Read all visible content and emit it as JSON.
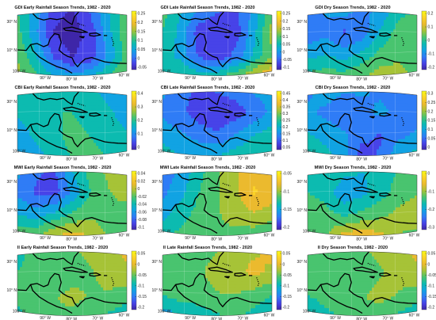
{
  "panels": [
    {
      "title": "GDI Early Rainfall Season Trends, 1982 - 2020",
      "colorbar": [
        "0.25",
        "0.2",
        "0.15",
        "0.1",
        "0.05",
        "0",
        "-0.05"
      ],
      "field": [
        [
          0.5,
          0.35,
          0.1,
          0.05,
          0.2,
          0.4,
          0.55
        ],
        [
          0.55,
          0.3,
          0.05,
          0.0,
          0.1,
          0.35,
          0.6
        ],
        [
          0.6,
          0.4,
          0.15,
          0.05,
          0.1,
          0.3,
          0.55
        ],
        [
          0.65,
          0.55,
          0.45,
          0.4,
          0.45,
          0.55,
          0.65
        ]
      ]
    },
    {
      "title": "GDI Late Rainfall Season Trends, 1982 - 2020",
      "colorbar": [
        "0.25",
        "0.2",
        "0.15",
        "0.1",
        "0.05",
        "0",
        "-0.05",
        "-0.1"
      ],
      "field": [
        [
          0.55,
          0.4,
          0.3,
          0.2,
          0.15,
          0.3,
          0.6
        ],
        [
          0.5,
          0.35,
          0.1,
          0.05,
          0.1,
          0.35,
          0.65
        ],
        [
          0.45,
          0.35,
          0.15,
          0.1,
          0.2,
          0.4,
          0.6
        ],
        [
          0.5,
          0.55,
          0.55,
          0.6,
          0.7,
          0.8,
          0.85
        ]
      ]
    },
    {
      "title": "GDI Dry Season Trends, 1982 - 2020",
      "colorbar": [
        "0.2",
        "0.1",
        "0",
        "-0.1",
        "-0.2"
      ],
      "field": [
        [
          0.15,
          0.3,
          0.35,
          0.25,
          0.3,
          0.45,
          0.5
        ],
        [
          0.2,
          0.25,
          0.15,
          0.2,
          0.4,
          0.55,
          0.6
        ],
        [
          0.35,
          0.4,
          0.35,
          0.45,
          0.55,
          0.6,
          0.55
        ],
        [
          0.55,
          0.6,
          0.6,
          0.65,
          0.7,
          0.65,
          0.6
        ]
      ]
    },
    {
      "title": "CBI Early Rainfall Season Trends, 1982 - 2020",
      "colorbar": [
        "0.4",
        "0.3",
        "0.2",
        "0.1",
        "0"
      ],
      "field": [
        [
          0.45,
          0.5,
          0.5,
          0.45,
          0.4,
          0.35,
          0.3
        ],
        [
          0.4,
          0.45,
          0.5,
          0.5,
          0.45,
          0.4,
          0.35
        ],
        [
          0.35,
          0.4,
          0.45,
          0.55,
          0.5,
          0.45,
          0.4
        ],
        [
          0.3,
          0.35,
          0.4,
          0.5,
          0.55,
          0.5,
          0.45
        ]
      ]
    },
    {
      "title": "CBI Late Rainfall Season Trends, 1982 - 2020",
      "colorbar": [
        "0.45",
        "0.4",
        "0.35",
        "0.3",
        "0.25",
        "0.2",
        "0.15",
        "0.1",
        "0.05"
      ],
      "field": [
        [
          0.3,
          0.2,
          0.15,
          0.2,
          0.25,
          0.3,
          0.35
        ],
        [
          0.25,
          0.2,
          0.1,
          0.05,
          0.1,
          0.2,
          0.3
        ],
        [
          0.35,
          0.3,
          0.25,
          0.2,
          0.3,
          0.4,
          0.45
        ],
        [
          0.45,
          0.4,
          0.4,
          0.45,
          0.5,
          0.5,
          0.5
        ]
      ]
    },
    {
      "title": "CBI Dry Season Trends, 1982 - 2020",
      "colorbar": [
        "0.3",
        "0.25",
        "0.2",
        "0.15",
        "0.1",
        "0.05",
        "0"
      ],
      "field": [
        [
          0.25,
          0.35,
          0.3,
          0.3,
          0.25,
          0.2,
          0.25
        ],
        [
          0.3,
          0.25,
          0.2,
          0.25,
          0.3,
          0.25,
          0.2
        ],
        [
          0.4,
          0.35,
          0.3,
          0.2,
          0.15,
          0.25,
          0.3
        ],
        [
          0.5,
          0.45,
          0.35,
          0.05,
          0.2,
          0.4,
          0.45
        ]
      ]
    },
    {
      "title": "MWI Early Rainfall Season Trends, 1982 - 2020",
      "colorbar": [
        "0.04",
        "0.02",
        "0",
        "-0.02",
        "-0.04",
        "-0.06",
        "-0.08",
        "-0.1"
      ],
      "field": [
        [
          0.3,
          0.2,
          0.15,
          0.4,
          0.55,
          0.65,
          0.7
        ],
        [
          0.25,
          0.15,
          0.1,
          0.3,
          0.5,
          0.6,
          0.7
        ],
        [
          0.4,
          0.35,
          0.45,
          0.55,
          0.6,
          0.55,
          0.5
        ],
        [
          0.6,
          0.65,
          0.8,
          0.85,
          0.75,
          0.6,
          0.55
        ]
      ]
    },
    {
      "title": "MWI Late Rainfall Season Trends, 1982 - 2020",
      "colorbar": [
        "-0.05",
        "-0.1",
        "-0.15",
        "-0.2"
      ],
      "field": [
        [
          0.2,
          0.3,
          0.45,
          0.6,
          0.7,
          0.8,
          0.75
        ],
        [
          0.25,
          0.35,
          0.5,
          0.6,
          0.7,
          0.85,
          0.8
        ],
        [
          0.35,
          0.45,
          0.55,
          0.6,
          0.65,
          0.7,
          0.65
        ],
        [
          0.5,
          0.55,
          0.6,
          0.6,
          0.55,
          0.5,
          0.5
        ]
      ]
    },
    {
      "title": "MWI Dry Season Trends, 1982 - 2020",
      "colorbar": [
        "0",
        "-0.1",
        "-0.2",
        "-0.3"
      ],
      "field": [
        [
          0.45,
          0.5,
          0.45,
          0.4,
          0.45,
          0.5,
          0.55
        ],
        [
          0.5,
          0.45,
          0.3,
          0.35,
          0.45,
          0.55,
          0.6
        ],
        [
          0.6,
          0.55,
          0.5,
          0.55,
          0.6,
          0.65,
          0.7
        ],
        [
          0.55,
          0.6,
          0.85,
          0.9,
          0.8,
          0.6,
          0.55
        ]
      ]
    },
    {
      "title": "II Early Rainfall Season Trends, 1982 - 2020",
      "colorbar": [
        "0.05",
        "0",
        "-0.05",
        "-0.1",
        "-0.15",
        "-0.2"
      ],
      "field": [
        [
          0.45,
          0.55,
          0.6,
          0.6,
          0.65,
          0.7,
          0.75
        ],
        [
          0.5,
          0.55,
          0.5,
          0.55,
          0.6,
          0.65,
          0.7
        ],
        [
          0.55,
          0.6,
          0.6,
          0.65,
          0.6,
          0.6,
          0.55
        ],
        [
          0.45,
          0.55,
          0.6,
          0.55,
          0.5,
          0.45,
          0.4
        ]
      ]
    },
    {
      "title": "II Late Rainfall Season Trends, 1982 - 2020",
      "colorbar": [
        "0.05",
        "0",
        "-0.05",
        "-0.1",
        "-0.15",
        "-0.2"
      ],
      "field": [
        [
          0.55,
          0.6,
          0.55,
          0.6,
          0.65,
          0.7,
          0.75
        ],
        [
          0.5,
          0.55,
          0.6,
          0.65,
          0.7,
          0.75,
          0.7
        ],
        [
          0.5,
          0.55,
          0.55,
          0.6,
          0.6,
          0.55,
          0.5
        ],
        [
          0.3,
          0.35,
          0.4,
          0.45,
          0.5,
          0.45,
          0.4
        ]
      ]
    },
    {
      "title": "II Dry Season Trends, 1982 - 2020",
      "colorbar": [
        "0.05",
        "0",
        "-0.05",
        "-0.1",
        "-0.15",
        "-0.2"
      ],
      "field": [
        [
          0.5,
          0.55,
          0.6,
          0.6,
          0.65,
          0.7,
          0.75
        ],
        [
          0.55,
          0.55,
          0.5,
          0.55,
          0.6,
          0.65,
          0.7
        ],
        [
          0.5,
          0.55,
          0.6,
          0.6,
          0.65,
          0.6,
          0.55
        ],
        [
          0.35,
          0.45,
          0.5,
          0.55,
          0.5,
          0.45,
          0.4
        ]
      ]
    }
  ],
  "lon_ticks": [
    "100° W",
    "90° W",
    "80° W",
    "70° W",
    "60° W"
  ],
  "lat_ticks": [
    "30° N",
    "20° N",
    "10° N"
  ],
  "colormap": [
    "#3e26a8",
    "#4743e8",
    "#2f7cf6",
    "#11a3e3",
    "#0cbbb0",
    "#49c46f",
    "#a6c337",
    "#ebba2e",
    "#fbd327",
    "#f9fb15"
  ]
}
